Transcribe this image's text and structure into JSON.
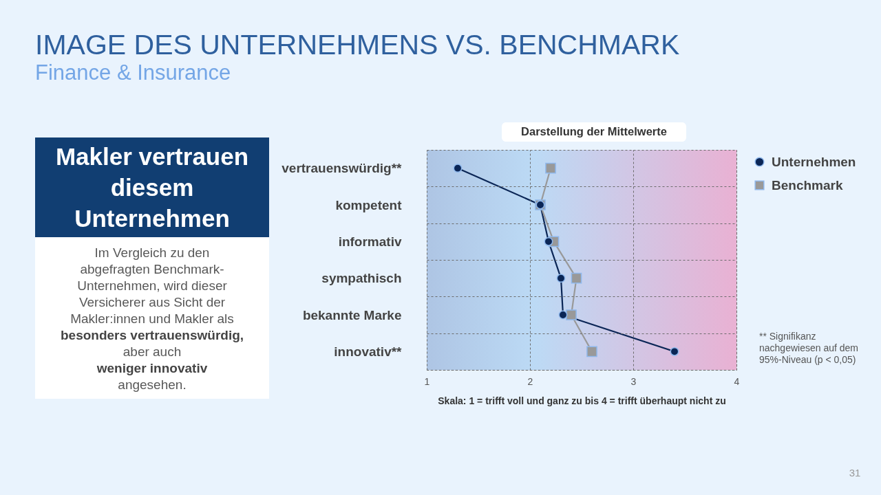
{
  "chart_data": [
    {
      "type": "other",
      "title": "Makler vertrauen diesem Unternehmen",
      "annotations": [
        "Im Vergleich zu den",
        "abgefragten  Benchmark-",
        "Unternehmen, wird dieser",
        "Versicherer aus Sicht der",
        "Makler:innen und Makler als",
        "besonders vertrauenswürdig,",
        "aber auch",
        "weniger innovativ",
        "angesehen."
      ]
    },
    {
      "type": "line",
      "orientation": "horizontal",
      "title": "IMAGE DES UNTERNEHMENS VS. BENCHMARK",
      "subtitle": "Finance & Insurance",
      "xlabel": "Skala: 1 = trifft voll und ganz zu bis 4 = trifft überhaupt nicht zu",
      "categories": [
        "vertrauenswürdig**",
        "kompetent",
        "informativ",
        "sympathisch",
        "bekannte Marke",
        "innovativ**"
      ],
      "series": [
        {
          "name": "Unternehmen",
          "color": "#0b2656",
          "marker": "circle",
          "values": [
            1.3,
            2.1,
            2.18,
            2.3,
            2.32,
            3.4
          ]
        },
        {
          "name": "Benchmark",
          "color": "#999999",
          "marker": "square",
          "values": [
            2.2,
            2.1,
            2.23,
            2.45,
            2.4,
            2.6
          ]
        }
      ],
      "xlim": [
        1,
        4
      ],
      "xticks": [
        1,
        2,
        3,
        4
      ],
      "grid": true,
      "legend": "right",
      "annotations": [
        "Darstellung der Mittelwerte",
        "** Signifikanz nachgewiesen auf dem 95%-Niveau (p < 0,05)",
        "31"
      ]
    }
  ]
}
